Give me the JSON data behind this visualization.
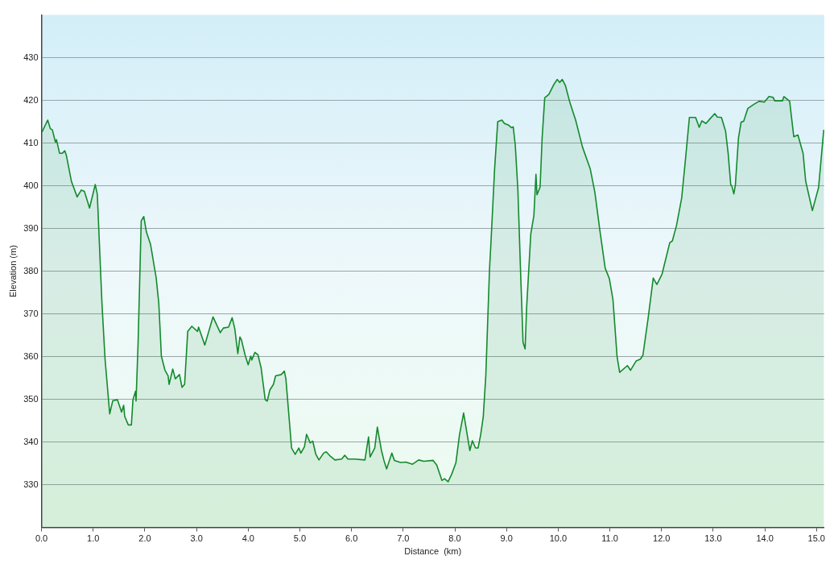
{
  "chart_data": {
    "type": "area",
    "xlabel": "Distance  (km)",
    "ylabel": "Elevation (m)",
    "xlim": [
      0,
      15.15
    ],
    "ylim": [
      320,
      440
    ],
    "xticks": [
      {
        "value": 0,
        "label": "0.0"
      },
      {
        "value": 1,
        "label": "1.0"
      },
      {
        "value": 2,
        "label": "2.0"
      },
      {
        "value": 3,
        "label": "3.0"
      },
      {
        "value": 4,
        "label": "4.0"
      },
      {
        "value": 5,
        "label": "5.0"
      },
      {
        "value": 6,
        "label": "6.0"
      },
      {
        "value": 7,
        "label": "7.0"
      },
      {
        "value": 8,
        "label": "8.0"
      },
      {
        "value": 9,
        "label": "9.0"
      },
      {
        "value": 10,
        "label": "10.0"
      },
      {
        "value": 11,
        "label": "11.0"
      },
      {
        "value": 12,
        "label": "12.0"
      },
      {
        "value": 13,
        "label": "13.0"
      },
      {
        "value": 14,
        "label": "14.0"
      },
      {
        "value": 15,
        "label": "15.0"
      }
    ],
    "yticks": [
      330,
      340,
      350,
      360,
      370,
      380,
      390,
      400,
      410,
      420,
      430
    ],
    "grid": "y",
    "legend": false,
    "marker": "none",
    "line_style": "solid",
    "series": [
      {
        "color": "#138a2c",
        "x": [
          0.01,
          0.12,
          0.17,
          0.21,
          0.27,
          0.29,
          0.35,
          0.4,
          0.45,
          0.48,
          0.58,
          0.69,
          0.77,
          0.83,
          0.93,
          1.04,
          1.08,
          1.17,
          1.23,
          1.32,
          1.38,
          1.47,
          1.55,
          1.59,
          1.61,
          1.68,
          1.74,
          1.77,
          1.82,
          1.83,
          1.87,
          1.93,
          1.98,
          2.03,
          2.11,
          2.22,
          2.27,
          2.32,
          2.39,
          2.45,
          2.47,
          2.54,
          2.59,
          2.67,
          2.72,
          2.77,
          2.83,
          2.91,
          3.02,
          3.04,
          3.16,
          3.32,
          3.46,
          3.52,
          3.62,
          3.69,
          3.74,
          3.8,
          3.84,
          3.87,
          3.94,
          4.0,
          4.05,
          4.07,
          4.13,
          4.19,
          4.25,
          4.33,
          4.37,
          4.42,
          4.49,
          4.53,
          4.64,
          4.7,
          4.73,
          4.84,
          4.91,
          4.98,
          5.02,
          5.09,
          5.13,
          5.2,
          5.25,
          5.31,
          5.37,
          5.46,
          5.51,
          5.58,
          5.68,
          5.81,
          5.87,
          5.93,
          6.06,
          6.26,
          6.33,
          6.36,
          6.45,
          6.5,
          6.58,
          6.63,
          6.68,
          6.78,
          6.83,
          6.95,
          7.05,
          7.18,
          7.3,
          7.4,
          7.58,
          7.65,
          7.75,
          7.8,
          7.87,
          7.94,
          8.02,
          8.09,
          8.17,
          8.29,
          8.34,
          8.4,
          8.45,
          8.5,
          8.55,
          8.6,
          8.67,
          8.7,
          8.77,
          8.83,
          8.91,
          8.96,
          9.04,
          9.1,
          9.13,
          9.17,
          9.22,
          9.27,
          9.32,
          9.36,
          9.39,
          9.47,
          9.53,
          9.57,
          9.59,
          9.65,
          9.69,
          9.74,
          9.82,
          9.92,
          9.98,
          10.03,
          10.08,
          10.14,
          10.22,
          10.34,
          10.47,
          10.62,
          10.71,
          10.81,
          10.91,
          10.99,
          11.06,
          11.14,
          11.19,
          11.34,
          11.4,
          11.51,
          11.59,
          11.64,
          11.74,
          11.84,
          11.91,
          12.01,
          12.16,
          12.21,
          12.29,
          12.39,
          12.46,
          12.54,
          12.66,
          12.73,
          12.78,
          12.86,
          12.94,
          13.03,
          13.08,
          13.16,
          13.24,
          13.29,
          13.34,
          13.36,
          13.4,
          13.43,
          13.49,
          13.54,
          13.59,
          13.67,
          13.79,
          13.89,
          13.99,
          14.08,
          14.16,
          14.19,
          14.34,
          14.37,
          14.48,
          14.56,
          14.64,
          14.74,
          14.79,
          14.92,
          15.04,
          15.14
        ],
        "values": [
          412.6,
          415.4,
          413.4,
          413.1,
          410.2,
          410.8,
          407.6,
          407.6,
          408.2,
          407.2,
          401,
          397.4,
          399,
          398.7,
          394.8,
          400.3,
          398,
          372.5,
          359.4,
          346.6,
          349.7,
          349.9,
          347,
          348.6,
          346,
          344,
          344,
          349.9,
          351.9,
          349.6,
          363.3,
          391.8,
          392.8,
          389.2,
          386.3,
          378.4,
          372.5,
          360.1,
          356.8,
          355.5,
          353.5,
          357.1,
          354.8,
          355.8,
          352.8,
          353.5,
          365.9,
          367.1,
          365.9,
          366.9,
          362.7,
          369.3,
          365.6,
          366.7,
          366.9,
          369.1,
          366.6,
          360.7,
          364.6,
          363.9,
          360.4,
          358.1,
          360.1,
          359.2,
          361,
          360.4,
          357.4,
          349.9,
          349.6,
          352.2,
          353.5,
          355.5,
          355.8,
          356.6,
          354.8,
          338.6,
          337.1,
          338.6,
          337.4,
          338.9,
          341.8,
          339.8,
          340.2,
          337.1,
          335.8,
          337.4,
          337.7,
          336.8,
          335.8,
          336,
          336.9,
          336,
          336,
          335.8,
          341.2,
          336.5,
          338.6,
          343.5,
          338,
          335.6,
          333.7,
          337.4,
          335.7,
          335.2,
          335.3,
          334.8,
          335.8,
          335.5,
          335.7,
          334.6,
          331,
          331.4,
          330.7,
          332.5,
          335.1,
          341.7,
          346.8,
          338,
          340.3,
          338.6,
          338.6,
          341.7,
          345.9,
          355.7,
          380.1,
          386.9,
          404,
          415,
          415.4,
          414.6,
          414.2,
          413.6,
          413.8,
          409.5,
          399.1,
          380.7,
          363.3,
          361.8,
          371.6,
          388.7,
          393,
          402.7,
          397.9,
          399.7,
          411.3,
          420.6,
          421.4,
          423.8,
          424.9,
          424.2,
          424.9,
          423.5,
          419.8,
          415.3,
          409.1,
          404,
          398.5,
          389.3,
          380.7,
          378.3,
          373.4,
          360,
          356.3,
          357.9,
          356.8,
          359,
          359.4,
          360.3,
          368.9,
          378.4,
          376.9,
          379.3,
          386.7,
          387.1,
          390.7,
          397.1,
          405.7,
          416,
          416,
          413.7,
          415.2,
          414.6,
          415.7,
          416.9,
          416.1,
          416,
          412.8,
          407.6,
          400.2,
          400,
          398.1,
          400.2,
          411.2,
          414.9,
          415.1,
          418.1,
          419.1,
          419.8,
          419.6,
          420.9,
          420.7,
          419.9,
          419.9,
          420.9,
          419.8,
          411.5,
          411.9,
          407.6,
          401.1,
          394.2,
          399.6,
          413.1
        ]
      }
    ]
  }
}
